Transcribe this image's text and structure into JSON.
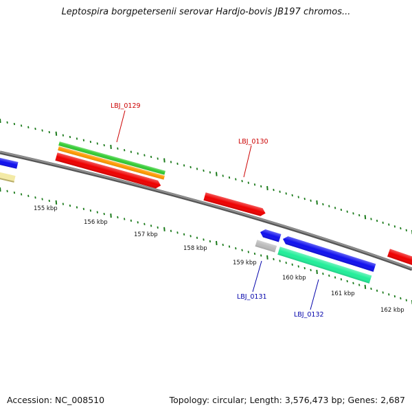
{
  "title": "Leptospira borgpetersenii serovar Hardjo-bovis JB197 chromos...",
  "footer": {
    "accession": "Accession: NC_008510",
    "summary": "Topology: circular; Length: 3,576,473 bp; Genes: 2,687"
  },
  "colors": {
    "backbone": "#7f7f7f",
    "tick": "#1a7a1a",
    "gene_red": "#ee0000",
    "gene_blue": "#1010ee",
    "gene_green": "#33cc33",
    "gene_orange": "#ff9900",
    "gene_teal": "#22ee99",
    "gene_gray": "#bbbbbb",
    "gene_yellow": "#f3eaa6",
    "label_red": "#cc0000",
    "label_blue": "#0000aa"
  },
  "scale_labels": [
    "155 kbp",
    "156 kbp",
    "157 kbp",
    "158 kbp",
    "159 kbp",
    "160 kbp",
    "161 kbp",
    "162 kbp"
  ],
  "gene_labels": [
    "LBJ_0129",
    "LBJ_0130",
    "LBJ_0131",
    "LBJ_0132"
  ]
}
